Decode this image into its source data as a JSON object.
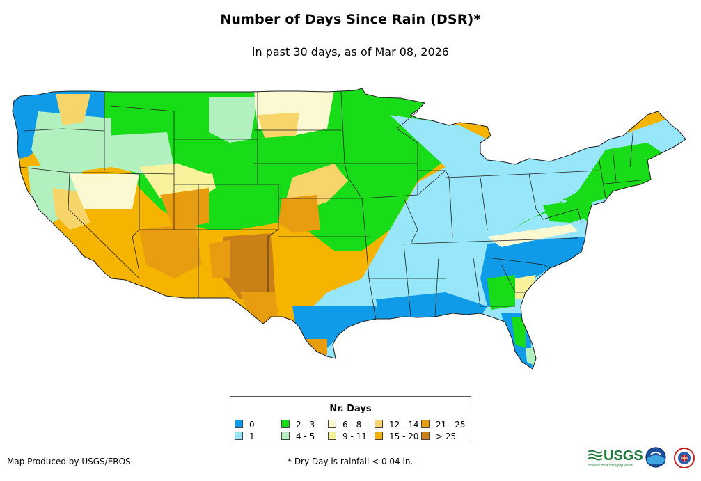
{
  "title": "Number of Days Since Rain (DSR)*",
  "subtitle": "in past 30 days, as of Mar 08, 2026",
  "legend": {
    "title": "Nr. Days",
    "items": [
      {
        "label": "0",
        "color": "#0f9be8"
      },
      {
        "label": "1",
        "color": "#97e6fa"
      },
      {
        "label": "2 - 3",
        "color": "#18dc18"
      },
      {
        "label": "4 - 5",
        "color": "#b3f0c0"
      },
      {
        "label": "6 - 8",
        "color": "#fbf9d2"
      },
      {
        "label": "9 - 11",
        "color": "#f9f29c"
      },
      {
        "label": "12 - 14",
        "color": "#f8d56a"
      },
      {
        "label": "15 - 20",
        "color": "#f4b400"
      },
      {
        "label": "21 - 25",
        "color": "#e89d10"
      },
      {
        "label": "> 25",
        "color": "#c98017"
      }
    ]
  },
  "credit": "Map Produced by USGS/EROS",
  "footnote": "* Dry Day is rainfall < 0.04 in.",
  "logos": {
    "usgs_text": "USGS",
    "usgs_tagline": "science for a changing world"
  }
}
